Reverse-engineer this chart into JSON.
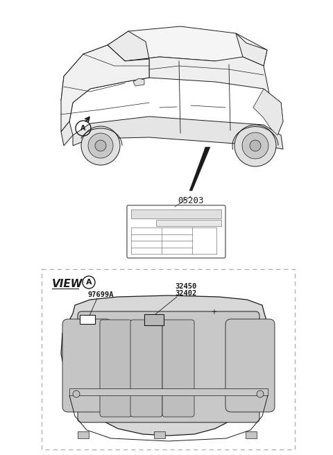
{
  "bg_color": "#ffffff",
  "line_color": "#1a1a1a",
  "fill_light": "#f0f0f0",
  "fill_mid": "#d8d8d8",
  "fill_dark": "#c0c0c0",
  "dash_color": "#aaaaaa",
  "part_05203": "05203",
  "part_32450": "32450",
  "part_32402": "32402",
  "part_97699A": "97699A",
  "view_text": "VIEW",
  "circle_A": "A",
  "fs_tiny": 6.0,
  "fs_small": 7.5,
  "fs_med": 9.0,
  "fs_large": 11.0
}
